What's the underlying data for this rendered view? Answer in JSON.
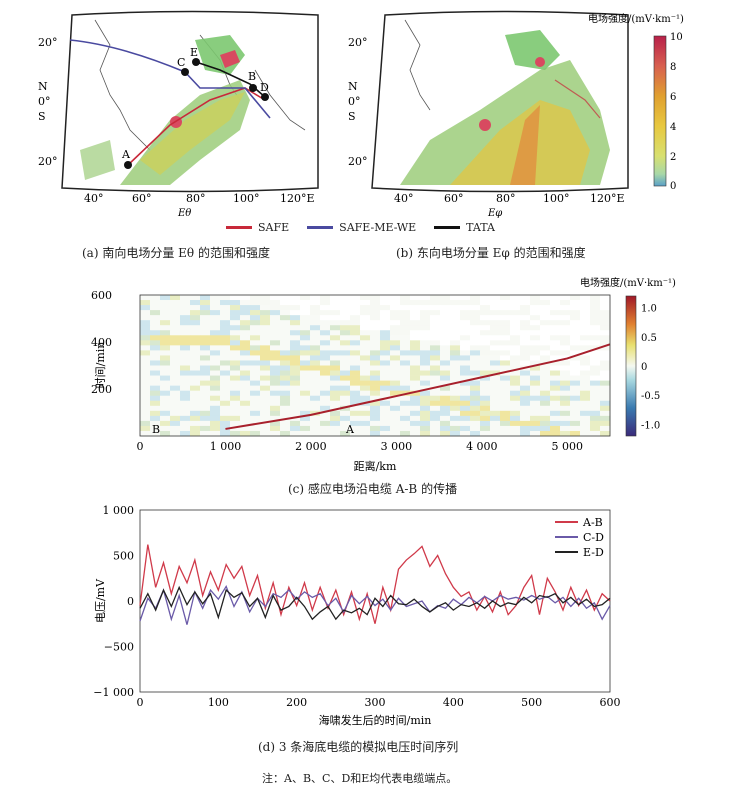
{
  "maps": {
    "lat_labels": [
      "20°",
      "N",
      "0°",
      "S",
      "20°"
    ],
    "lon_labels": [
      "40°",
      "60°",
      "80°",
      "100°",
      "120°E"
    ],
    "axis_a": "Eθ",
    "axis_b": "Eφ",
    "points": [
      "A",
      "B",
      "C",
      "D",
      "E"
    ],
    "colorbar_title": "电场强度/(mV·km⁻¹)",
    "colorbar_ticks": [
      "10",
      "8",
      "6",
      "4",
      "2",
      "0"
    ]
  },
  "cable_legend": {
    "items": [
      {
        "label": "SAFE",
        "color": "#c8293a"
      },
      {
        "label": "SAFE-ME-WE",
        "color": "#4a4aa0"
      },
      {
        "label": "TATA",
        "color": "#111111"
      }
    ]
  },
  "captions": {
    "a": "(a) 南向电场分量 Eθ 的范围和强度",
    "b": "(b) 东向电场分量 Eφ 的范围和强度",
    "c": "(c) 感应电场沿电缆 A-B 的传播",
    "d": "(d) 3 条海底电缆的模拟电压时间序列",
    "note": "注：A、B、C、D和E均代表电缆端点。"
  },
  "chart_data": [
    {
      "type": "heatmap",
      "title": "感应电场沿电缆 A-B 的传播",
      "xlabel": "距离/km",
      "ylabel": "时间/min",
      "xlim": [
        0,
        5500
      ],
      "ylim": [
        0,
        600
      ],
      "x_ticks": [
        "0",
        "1 000",
        "2 000",
        "3 000",
        "4 000",
        "5 000"
      ],
      "y_ticks": [
        "200",
        "400",
        "600"
      ],
      "colorbar_title": "电场强度/(mV·km⁻¹)",
      "colorbar_ticks": [
        "1.0",
        "0.5",
        "0",
        "-0.5",
        "-1.0"
      ],
      "colorbar_range": [
        -1.2,
        1.2
      ],
      "annotations": [
        "B",
        "A"
      ],
      "front_line": {
        "x": [
          1000,
          2000,
          3000,
          4000,
          5000,
          5500
        ],
        "y": [
          30,
          90,
          170,
          250,
          330,
          390
        ]
      }
    },
    {
      "type": "line",
      "title": "3 条海底电缆的模拟电压时间序列",
      "xlabel": "海啸发生后的时间/min",
      "ylabel": "电压/mV",
      "xlim": [
        0,
        600
      ],
      "ylim": [
        -1000,
        1000
      ],
      "x_ticks": [
        "0",
        "100",
        "200",
        "300",
        "400",
        "500",
        "600"
      ],
      "y_ticks": [
        "1 000",
        "500",
        "0",
        "−500",
        "−1 000"
      ],
      "series": [
        {
          "name": "A-B",
          "color": "#d03a4a",
          "x": [
            0,
            10,
            20,
            30,
            40,
            50,
            60,
            70,
            80,
            90,
            100,
            110,
            120,
            130,
            140,
            150,
            160,
            170,
            180,
            190,
            200,
            210,
            220,
            230,
            240,
            250,
            260,
            270,
            280,
            290,
            300,
            310,
            320,
            330,
            340,
            350,
            360,
            370,
            380,
            390,
            400,
            410,
            420,
            430,
            440,
            450,
            460,
            470,
            480,
            490,
            500,
            510,
            520,
            530,
            540,
            550,
            560,
            570,
            580,
            590,
            600
          ],
          "y": [
            -50,
            620,
            150,
            420,
            80,
            380,
            200,
            450,
            60,
            320,
            120,
            400,
            250,
            380,
            60,
            280,
            -80,
            200,
            -150,
            150,
            -50,
            200,
            -100,
            150,
            -80,
            120,
            -150,
            100,
            -200,
            80,
            -250,
            150,
            -100,
            350,
            450,
            520,
            600,
            380,
            500,
            300,
            150,
            50,
            100,
            -100,
            50,
            -120,
            100,
            -150,
            -50,
            150,
            280,
            -150,
            250,
            100,
            -100,
            150,
            -50,
            120,
            -100,
            80,
            0
          ]
        },
        {
          "name": "C-D",
          "color": "#6a5aa8",
          "x": [
            0,
            10,
            20,
            30,
            40,
            50,
            60,
            70,
            80,
            90,
            100,
            110,
            120,
            130,
            140,
            150,
            160,
            170,
            180,
            190,
            200,
            210,
            220,
            230,
            240,
            250,
            260,
            270,
            280,
            290,
            300,
            310,
            320,
            330,
            340,
            350,
            360,
            370,
            380,
            390,
            400,
            410,
            420,
            430,
            440,
            450,
            460,
            470,
            480,
            490,
            500,
            510,
            520,
            530,
            540,
            550,
            560,
            570,
            580,
            590,
            600
          ],
          "y": [
            -220,
            30,
            -80,
            120,
            -200,
            60,
            -260,
            100,
            -80,
            120,
            20,
            160,
            -60,
            100,
            -120,
            30,
            -60,
            80,
            40,
            120,
            20,
            100,
            40,
            80,
            -50,
            30,
            -120,
            60,
            -30,
            50,
            -50,
            20,
            -100,
            30,
            -60,
            -30,
            0,
            -120,
            -50,
            -80,
            20,
            -40,
            40,
            -20,
            50,
            0,
            60,
            20,
            40,
            10,
            60,
            20,
            50,
            -20,
            40,
            -60,
            30,
            -80,
            -20,
            -200,
            -50
          ]
        },
        {
          "name": "E-D",
          "color": "#222222",
          "x": [
            0,
            10,
            20,
            30,
            40,
            50,
            60,
            70,
            80,
            90,
            100,
            110,
            120,
            130,
            140,
            150,
            160,
            170,
            180,
            190,
            200,
            210,
            220,
            230,
            240,
            250,
            260,
            270,
            280,
            290,
            300,
            310,
            320,
            330,
            340,
            350,
            360,
            370,
            380,
            390,
            400,
            410,
            420,
            430,
            440,
            450,
            460,
            470,
            480,
            490,
            500,
            510,
            520,
            530,
            540,
            550,
            560,
            570,
            580,
            590,
            600
          ],
          "y": [
            -80,
            80,
            -100,
            120,
            -60,
            150,
            -40,
            100,
            -30,
            80,
            -180,
            120,
            40,
            90,
            -60,
            30,
            -180,
            60,
            -100,
            -60,
            40,
            -60,
            -200,
            -120,
            -60,
            -200,
            -100,
            -130,
            -80,
            -150,
            30,
            -60,
            60,
            -30,
            -40,
            20,
            -60,
            -120,
            -60,
            -20,
            -100,
            -40,
            -60,
            -20,
            -80,
            0,
            -60,
            -20,
            -40,
            40,
            -20,
            60,
            40,
            80,
            -20,
            40,
            -40,
            20,
            -60,
            -40,
            30
          ]
        }
      ]
    }
  ]
}
